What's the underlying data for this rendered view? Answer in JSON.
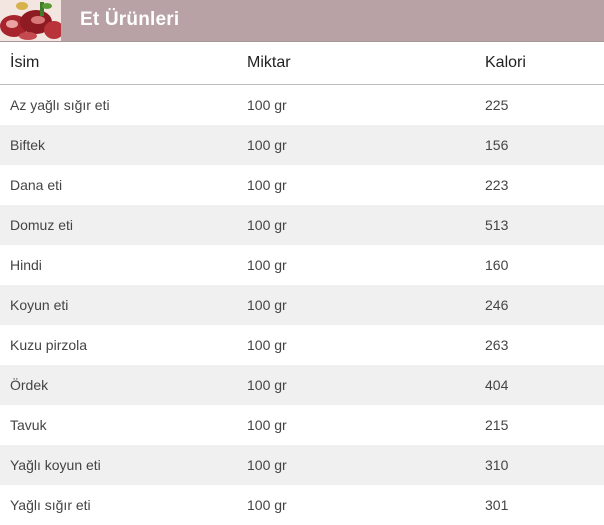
{
  "banner": {
    "title": "Et Ürünleri",
    "image_icon": "meat-photo-icon"
  },
  "table": {
    "headers": {
      "name": "İsim",
      "amount": "Miktar",
      "calories": "Kalori"
    },
    "rows": [
      {
        "name": "Az yağlı sığır eti",
        "amount": "100 gr",
        "calories": "225"
      },
      {
        "name": "Biftek",
        "amount": "100 gr",
        "calories": "156"
      },
      {
        "name": "Dana eti",
        "amount": "100 gr",
        "calories": "223"
      },
      {
        "name": "Domuz eti",
        "amount": "100 gr",
        "calories": "513"
      },
      {
        "name": "Hindi",
        "amount": "100 gr",
        "calories": "160"
      },
      {
        "name": "Koyun eti",
        "amount": "100 gr",
        "calories": "246"
      },
      {
        "name": "Kuzu pirzola",
        "amount": "100 gr",
        "calories": "263"
      },
      {
        "name": "Ördek",
        "amount": "100 gr",
        "calories": "404"
      },
      {
        "name": "Tavuk",
        "amount": "100 gr",
        "calories": "215"
      },
      {
        "name": "Yağlı koyun eti",
        "amount": "100 gr",
        "calories": "310"
      },
      {
        "name": "Yağlı sığır eti",
        "amount": "100 gr",
        "calories": "301"
      }
    ]
  },
  "colors": {
    "banner_bg": "#b9a2a5",
    "row_alt_bg": "#f0f0f0",
    "banner_text": "#ffffff"
  }
}
